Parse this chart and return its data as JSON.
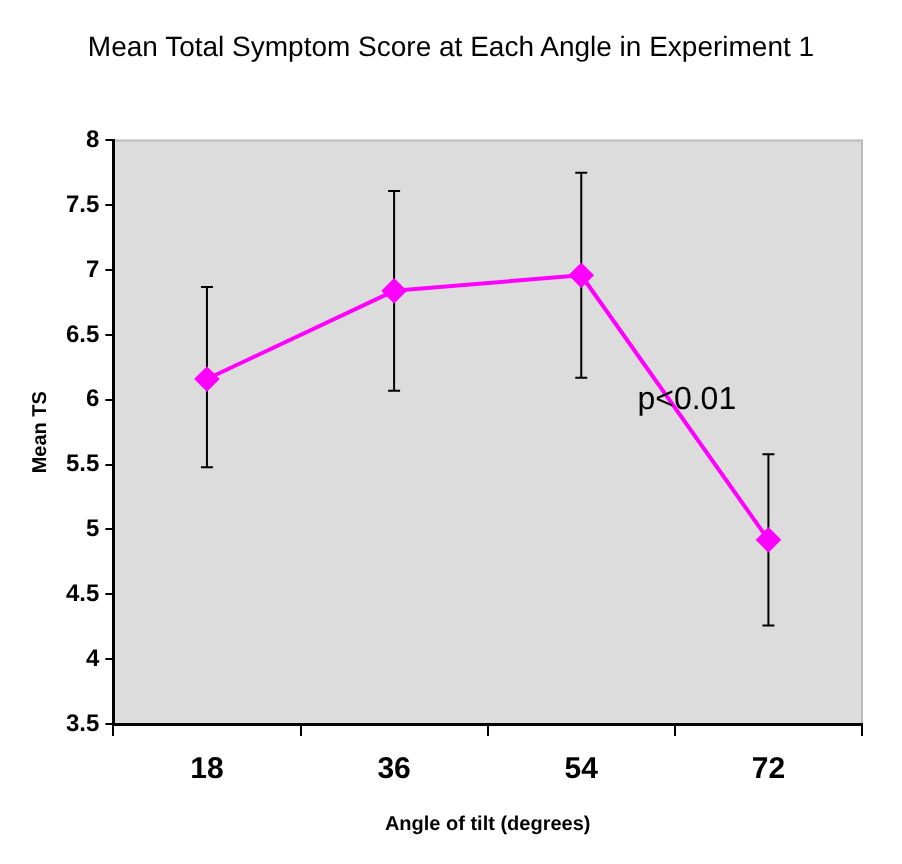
{
  "chart_data": {
    "type": "line",
    "title": "Mean Total Symptom Score at Each Angle in Experiment 1",
    "xlabel": "Angle of tilt (degrees)",
    "ylabel": "Mean TS",
    "categories": [
      "18",
      "36",
      "54",
      "72"
    ],
    "series": [
      {
        "color": "#ff00ff",
        "values": [
          6.16,
          6.84,
          6.96,
          4.92
        ],
        "errors": [
          [
            5.48,
            6.87
          ],
          [
            6.07,
            7.61
          ],
          [
            6.17,
            7.75
          ],
          [
            4.26,
            5.58
          ]
        ]
      }
    ],
    "ylim": [
      3.5,
      8
    ],
    "yticks": [
      3.5,
      4,
      4.5,
      5,
      5.5,
      6,
      6.5,
      7,
      7.5,
      8
    ],
    "grid": false,
    "legend": false,
    "marker": "diamond",
    "line_style": "solid",
    "annotations": [
      "p<0.01"
    ]
  }
}
